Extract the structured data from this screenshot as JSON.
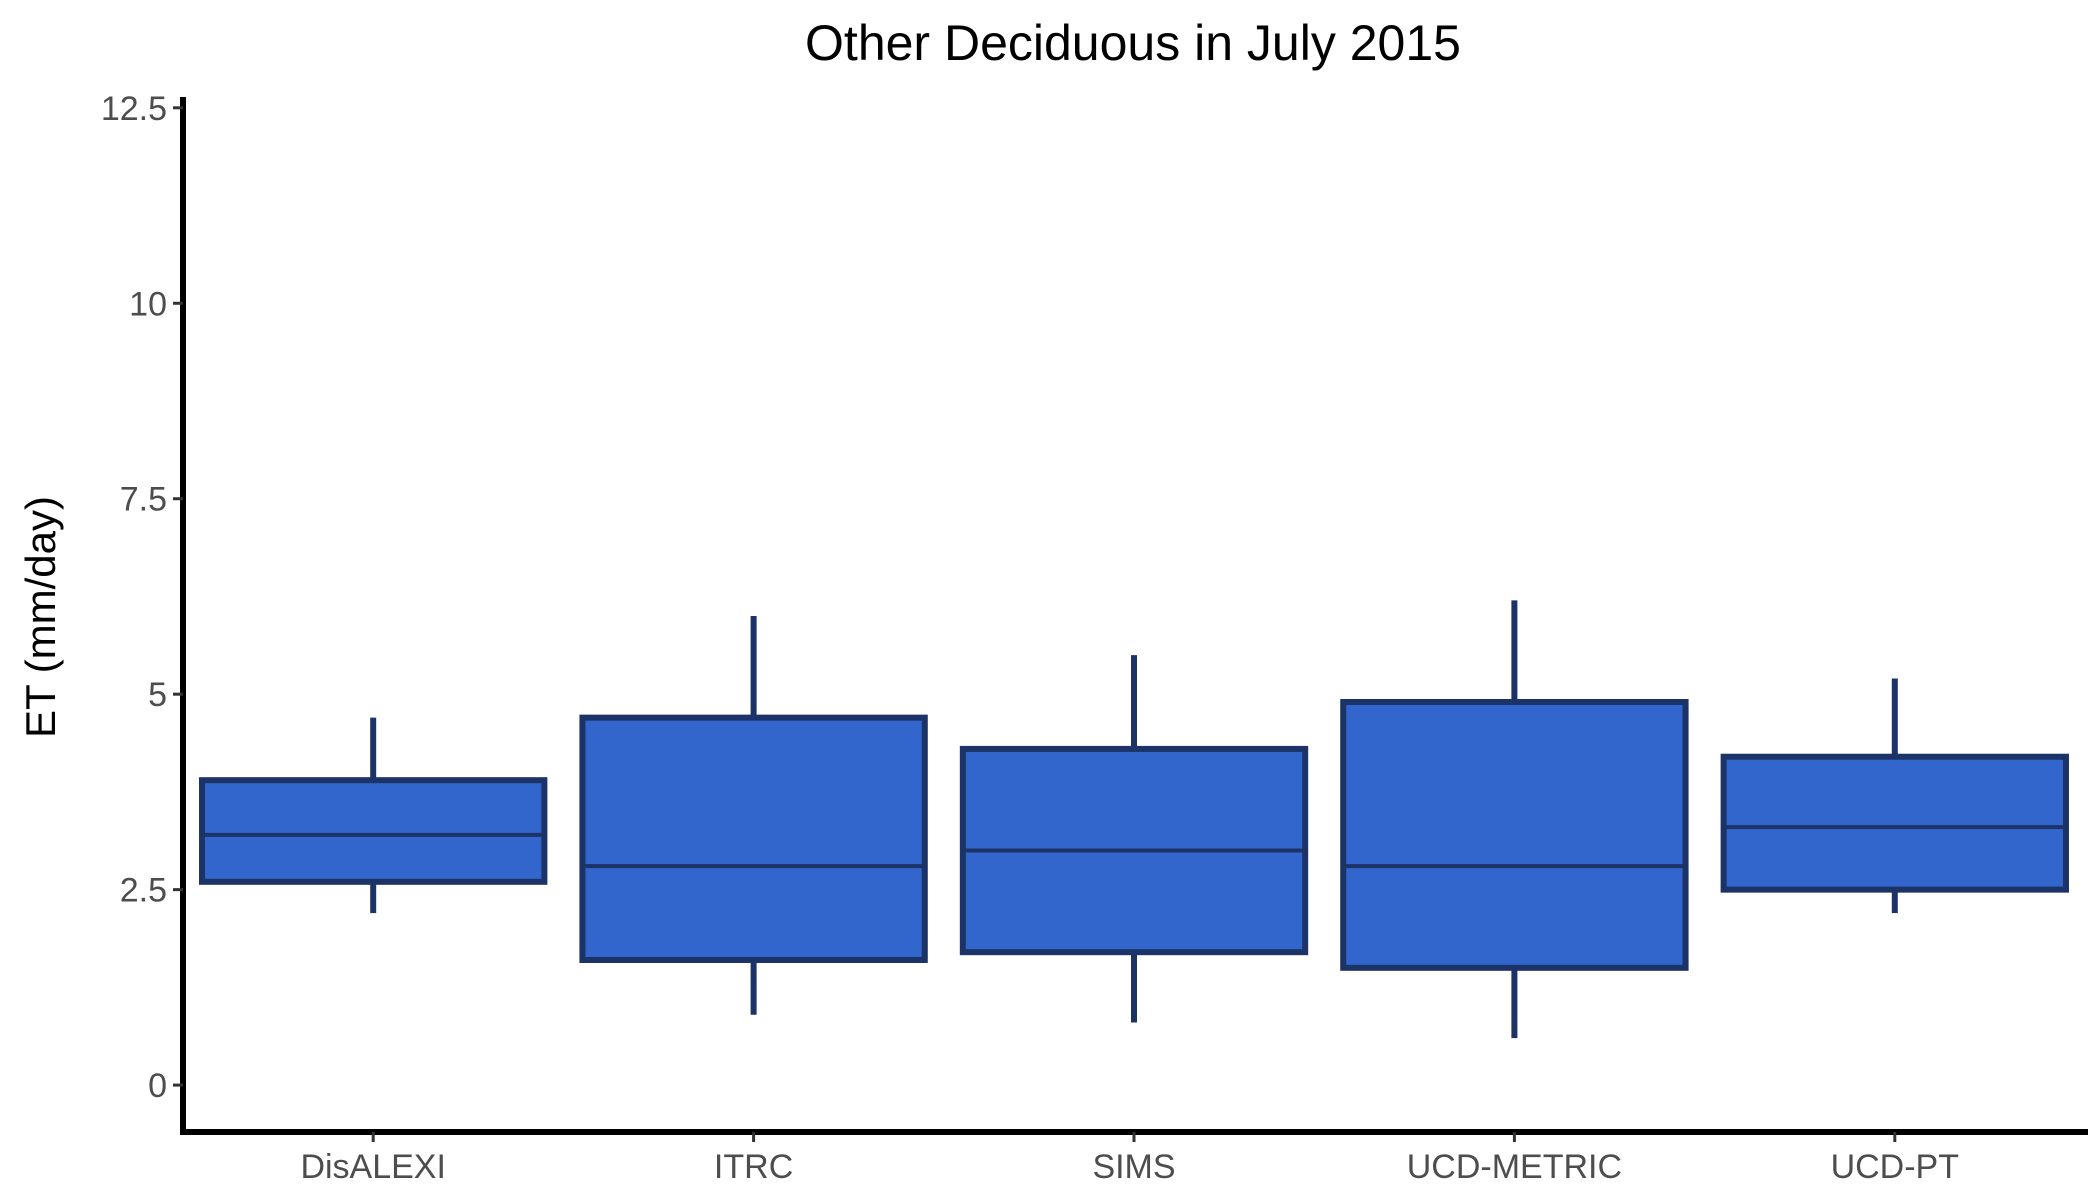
{
  "chart_data": {
    "type": "boxplot",
    "title": "Other Deciduous in July 2015",
    "xlabel": "",
    "ylabel": "ET (mm/day)",
    "ylim": [
      -0.6,
      12.6
    ],
    "yticks": [
      0,
      2.5,
      5,
      7.5,
      10,
      12.5
    ],
    "ytick_labels": [
      "0",
      "2.5",
      "5",
      "7.5",
      "10",
      "12.5"
    ],
    "grid": false,
    "colors": {
      "fill": "#3366cc",
      "stroke": "#1b3366",
      "axis": "#000000"
    },
    "categories": [
      "DisALEXI",
      "ITRC",
      "SIMS",
      "UCD-METRIC",
      "UCD-PT"
    ],
    "boxes": [
      {
        "category": "DisALEXI",
        "whisker_low": 2.2,
        "q1": 2.6,
        "median": 3.2,
        "q3": 3.9,
        "whisker_high": 4.7
      },
      {
        "category": "ITRC",
        "whisker_low": 0.9,
        "q1": 1.6,
        "median": 2.8,
        "q3": 4.7,
        "whisker_high": 6.0
      },
      {
        "category": "SIMS",
        "whisker_low": 0.8,
        "q1": 1.7,
        "median": 3.0,
        "q3": 4.3,
        "whisker_high": 5.5
      },
      {
        "category": "UCD-METRIC",
        "whisker_low": 0.6,
        "q1": 1.5,
        "median": 2.8,
        "q3": 4.9,
        "whisker_high": 6.2
      },
      {
        "category": "UCD-PT",
        "whisker_low": 2.2,
        "q1": 2.5,
        "median": 3.3,
        "q3": 4.2,
        "whisker_high": 5.2
      }
    ]
  }
}
